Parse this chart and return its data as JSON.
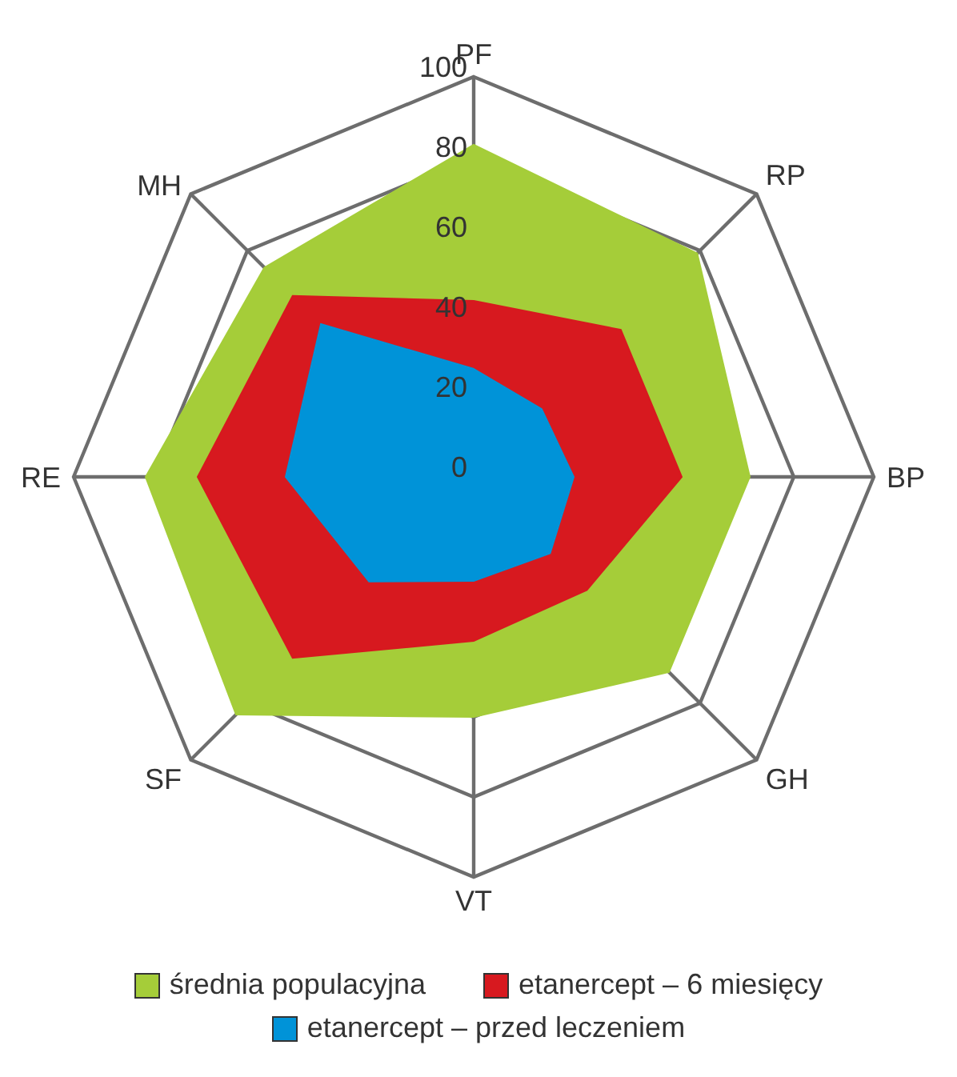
{
  "chart_data": {
    "type": "radar",
    "categories": [
      "PF",
      "RP",
      "BP",
      "GH",
      "VT",
      "SF",
      "RE",
      "MH"
    ],
    "series": [
      {
        "name": "średnia populacyjna",
        "color": "#a5cd39",
        "values": [
          83,
          79,
          69,
          69,
          60,
          84,
          82,
          74
        ]
      },
      {
        "name": "etanercept – 6 miesięcy",
        "color": "#d7191f",
        "values": [
          44,
          52,
          52,
          40,
          41,
          64,
          69,
          64
        ]
      },
      {
        "name": "etanercept – przed leczeniem",
        "color": "#0093d8",
        "values": [
          27,
          24,
          25,
          27,
          26,
          37,
          47,
          54
        ]
      }
    ],
    "ylim": [
      0,
      100
    ],
    "yticks": [
      0,
      20,
      40,
      60,
      80,
      100
    ],
    "grid": true,
    "legend": "bottom"
  }
}
